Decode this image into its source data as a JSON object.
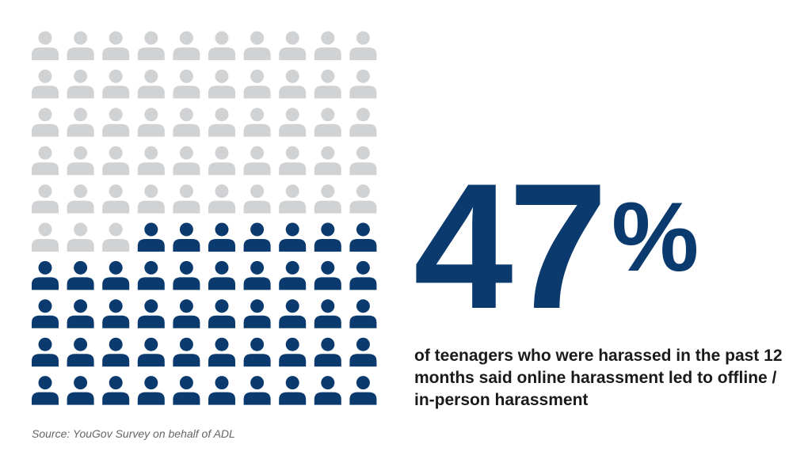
{
  "chart_data": {
    "type": "pictogram",
    "rows": 10,
    "columns": 10,
    "total": 100,
    "highlighted": 47,
    "fill_order": "from bottom-right",
    "colors": {
      "highlighted": "#0b3a6e",
      "other": "#d1d2d4"
    },
    "icon": "person-icon"
  },
  "stat": {
    "value": "47",
    "unit": "%"
  },
  "description": "of teenagers who were harassed in the past 12 months said online harassment led to offline / in-person harassment",
  "source": "Source: YouGov Survey on behalf of ADL"
}
